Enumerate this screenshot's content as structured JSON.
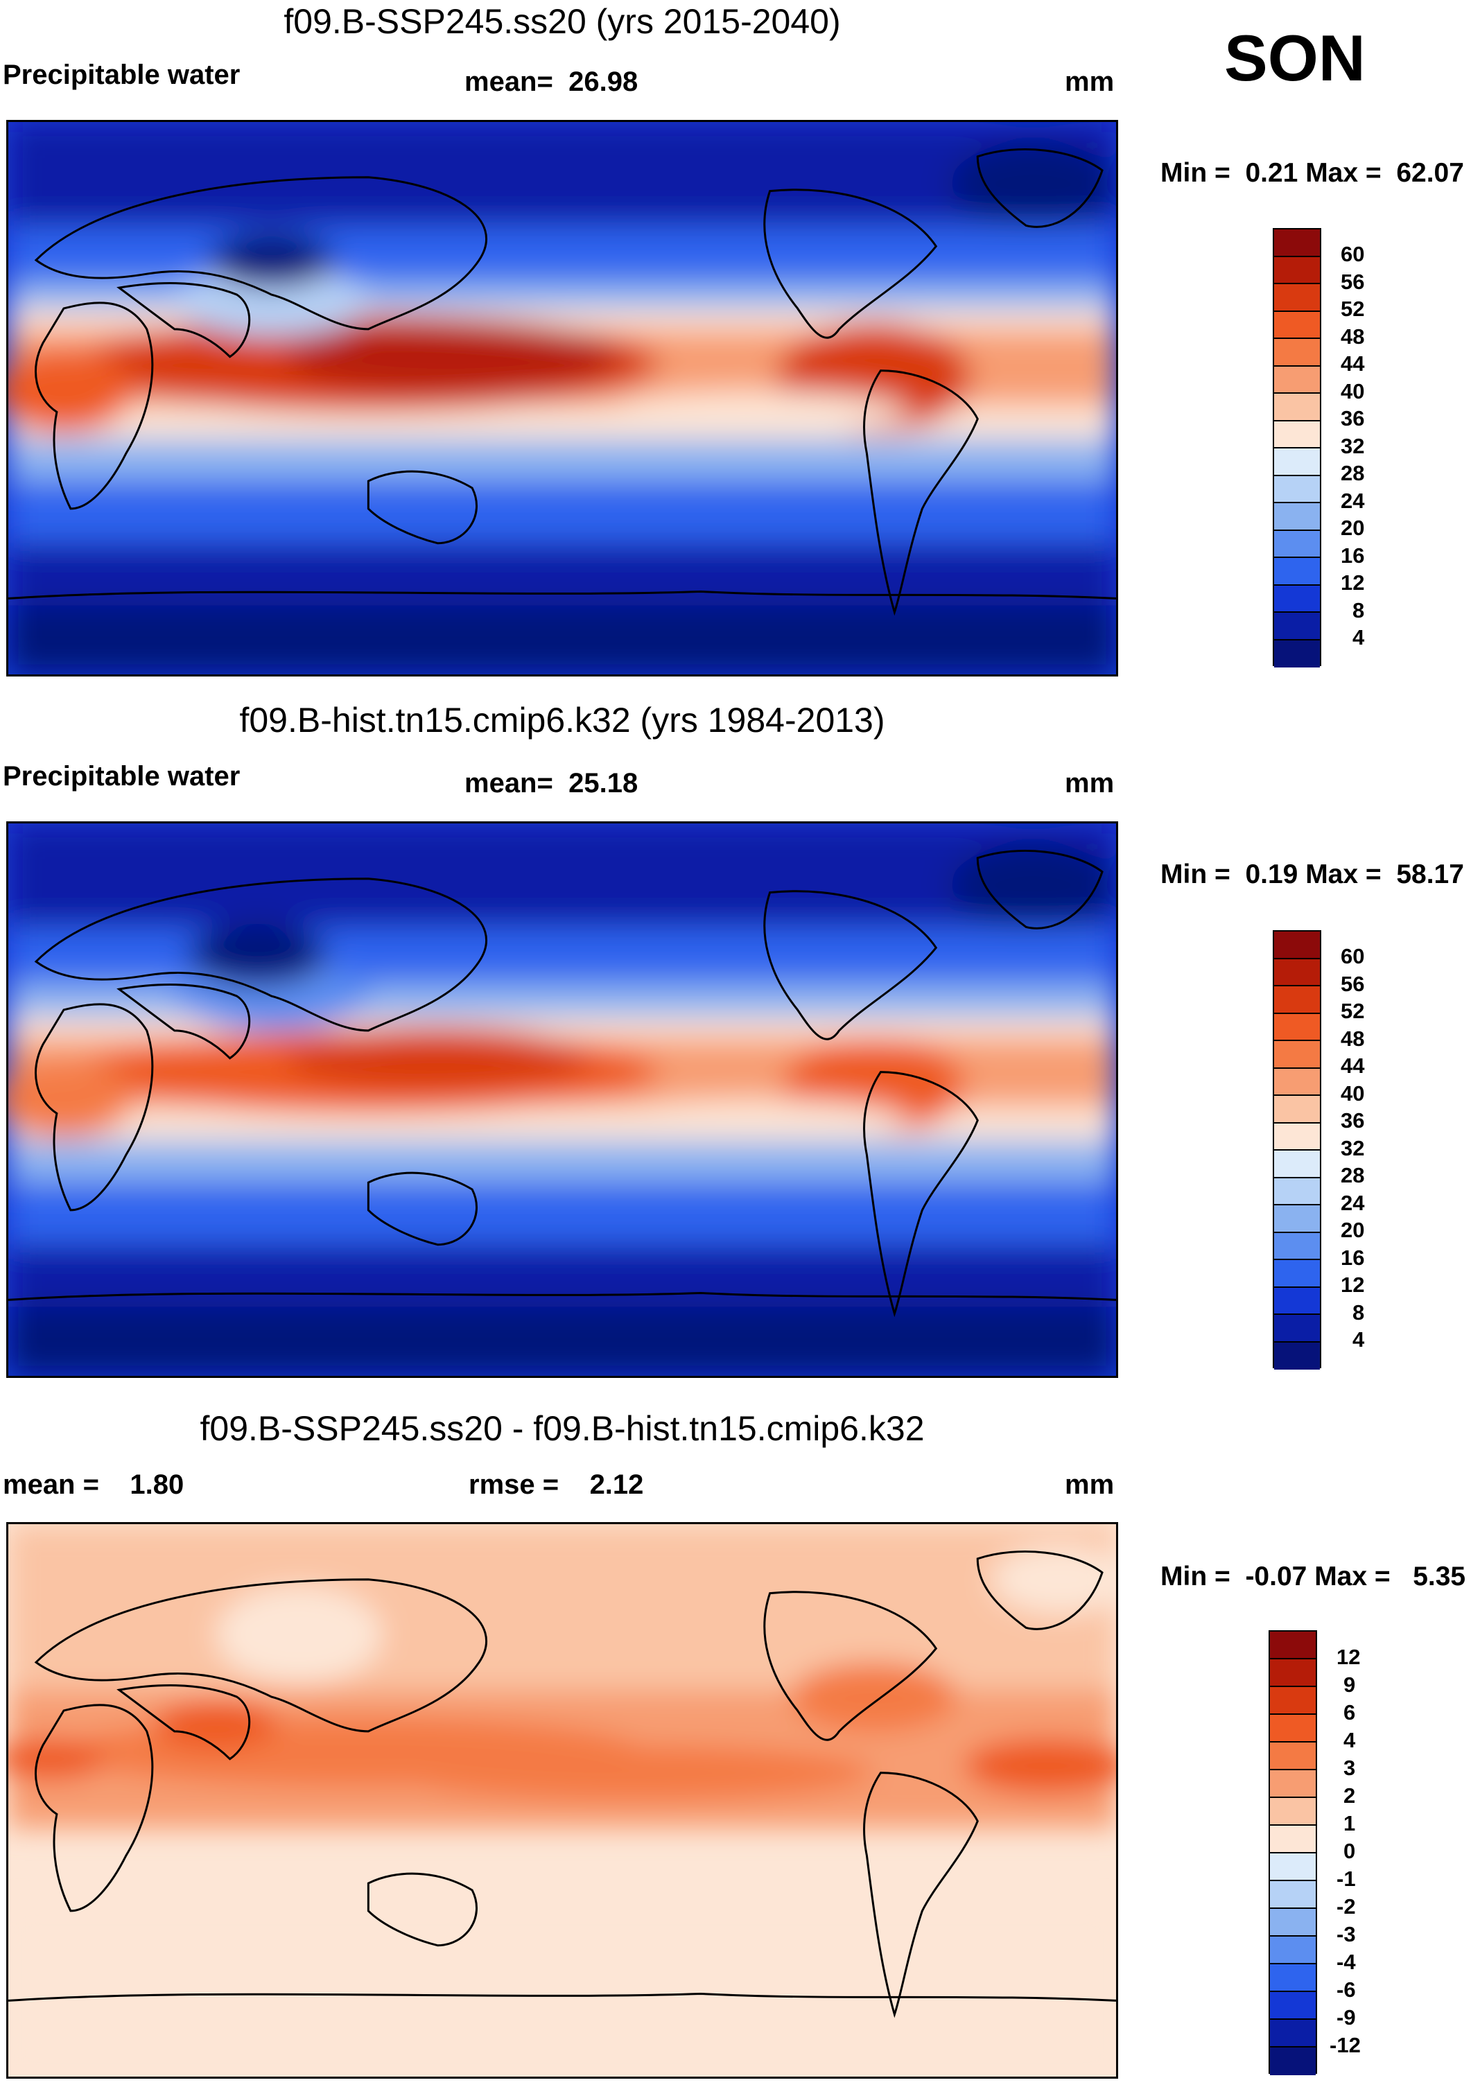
{
  "season": "SON",
  "panels": [
    {
      "title": "f09.B-SSP245.ss20 (yrs 2015-2040)",
      "variable": "Precipitable water",
      "mean_label": "mean=",
      "mean_value": "26.98",
      "units": "mm",
      "min_label": "Min =",
      "min_value": "0.21",
      "max_label": "Max =",
      "max_value": "62.07",
      "colorbar": {
        "ticks": [
          "60",
          "56",
          "52",
          "48",
          "44",
          "40",
          "36",
          "32",
          "28",
          "24",
          "20",
          "16",
          "12",
          "8",
          "4"
        ],
        "colors": [
          "#8c0a0a",
          "#b51c08",
          "#d93a10",
          "#ef5a24",
          "#f47a44",
          "#f79d72",
          "#fac4a4",
          "#fde6d6",
          "#dcebfa",
          "#b6d2f6",
          "#8ab2f0",
          "#5c8ef0",
          "#2e64ee",
          "#1438d6",
          "#0a1ea6",
          "#06127a"
        ]
      },
      "map": {
        "field": "precipitable_water_future",
        "background": "#1438d6",
        "ocean_contour": "#000000"
      }
    },
    {
      "title": "f09.B-hist.tn15.cmip6.k32 (yrs 1984-2013)",
      "variable": "Precipitable water",
      "mean_label": "mean=",
      "mean_value": "25.18",
      "units": "mm",
      "min_label": "Min =",
      "min_value": "0.19",
      "max_label": "Max =",
      "max_value": "58.17",
      "colorbar": {
        "ticks": [
          "60",
          "56",
          "52",
          "48",
          "44",
          "40",
          "36",
          "32",
          "28",
          "24",
          "20",
          "16",
          "12",
          "8",
          "4"
        ],
        "colors": [
          "#8c0a0a",
          "#b51c08",
          "#d93a10",
          "#ef5a24",
          "#f47a44",
          "#f79d72",
          "#fac4a4",
          "#fde6d6",
          "#dcebfa",
          "#b6d2f6",
          "#8ab2f0",
          "#5c8ef0",
          "#2e64ee",
          "#1438d6",
          "#0a1ea6",
          "#06127a"
        ]
      },
      "map": {
        "field": "precipitable_water_hist",
        "background": "#1438d6"
      }
    },
    {
      "title": "f09.B-SSP245.ss20 - f09.B-hist.tn15.cmip6.k32",
      "mean_label": "mean =",
      "mean_value": "1.80",
      "rmse_label": "rmse =",
      "rmse_value": "2.12",
      "units": "mm",
      "min_label": "Min =",
      "min_value": "-0.07",
      "max_label": "Max =",
      "max_value": "5.35",
      "colorbar": {
        "ticks": [
          "12",
          "9",
          "6",
          "4",
          "3",
          "2",
          "1",
          "0",
          "-1",
          "-2",
          "-3",
          "-4",
          "-6",
          "-9",
          "-12"
        ],
        "colors": [
          "#8c0a0a",
          "#b51c08",
          "#d93a10",
          "#ef5a24",
          "#f47a44",
          "#f79d72",
          "#fac4a4",
          "#fde6d6",
          "#dcebfa",
          "#b6d2f6",
          "#8ab2f0",
          "#5c8ef0",
          "#2e64ee",
          "#1438d6",
          "#0a1ea6",
          "#06127a"
        ]
      },
      "map": {
        "field": "precipitable_water_difference",
        "background": "#fde6d6"
      }
    }
  ]
}
